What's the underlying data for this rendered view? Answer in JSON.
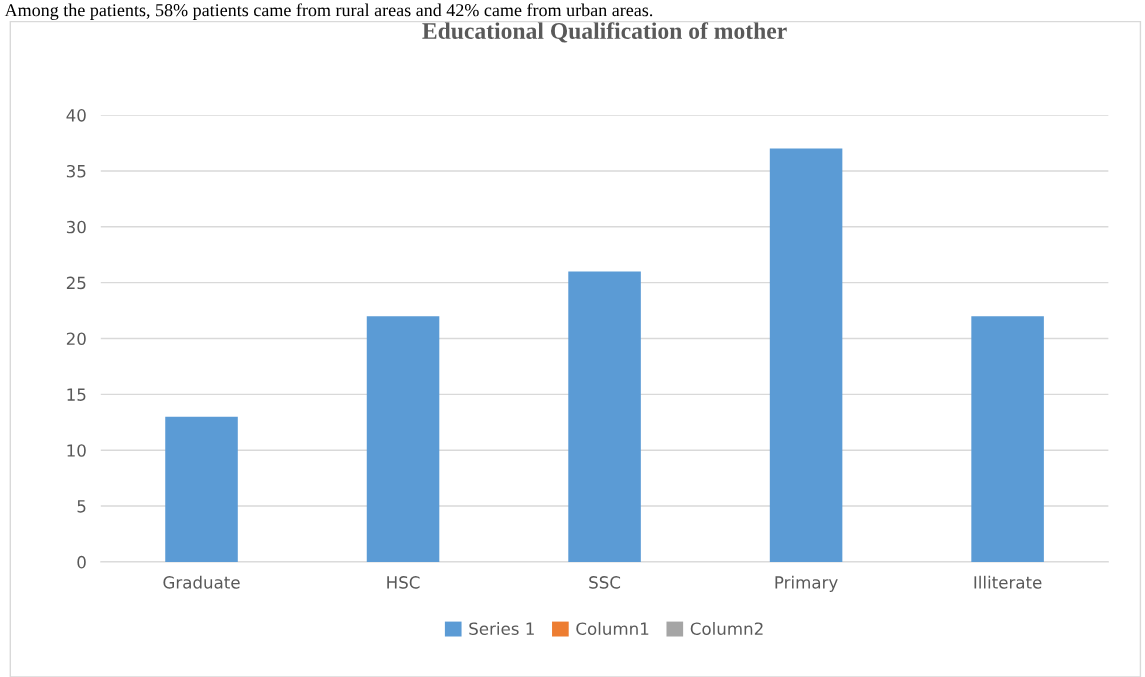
{
  "chart_data": {
    "type": "bar",
    "title": "Educational Qualification of mother",
    "annotations": [
      "Among the patients, 58% patients came from rural areas and 42% came from urban areas."
    ],
    "categories": [
      "Graduate",
      "HSC",
      "SSC",
      "Primary",
      "Illiterate"
    ],
    "series": [
      {
        "name": "Series 1",
        "color": "#5b9bd5",
        "values": [
          13,
          22,
          26,
          37,
          22
        ]
      },
      {
        "name": "Column1",
        "color": "#ed7d31",
        "values": [
          null,
          null,
          null,
          null,
          null
        ]
      },
      {
        "name": "Column2",
        "color": "#a5a5a5",
        "values": [
          null,
          null,
          null,
          null,
          null
        ]
      }
    ],
    "ylim": [
      0,
      40
    ],
    "yticks": [
      0,
      5,
      10,
      15,
      20,
      25,
      30,
      35,
      40
    ],
    "grid": "y",
    "legend": "bottom"
  }
}
